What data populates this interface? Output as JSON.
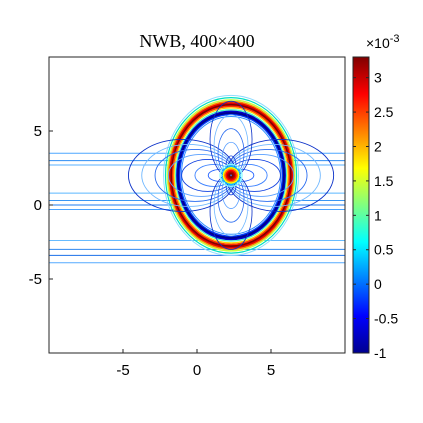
{
  "chart_data": {
    "type": "contour",
    "title": "NWB, 400×400",
    "xlabel": "",
    "ylabel": "",
    "xlim": [
      -10,
      10
    ],
    "ylim": [
      -10,
      10
    ],
    "x_ticks": [
      {
        "value": -5,
        "label": "-5"
      },
      {
        "value": 0,
        "label": "0"
      },
      {
        "value": 5,
        "label": "5"
      }
    ],
    "y_ticks": [
      {
        "value": 5,
        "label": "5"
      },
      {
        "value": 0,
        "label": "0"
      },
      {
        "value": -5,
        "label": "-5"
      }
    ],
    "grid": false,
    "colormap": "jet",
    "colorbar": {
      "exponent_label": "×10",
      "exponent_power": "-3",
      "range": [
        -1,
        3.3
      ],
      "ticks": [
        {
          "value": 3,
          "label": "3"
        },
        {
          "value": 2.5,
          "label": "2.5"
        },
        {
          "value": 2,
          "label": "2"
        },
        {
          "value": 1.5,
          "label": "1.5"
        },
        {
          "value": 1,
          "label": "1"
        },
        {
          "value": 0.5,
          "label": "0.5"
        },
        {
          "value": 0,
          "label": "0"
        },
        {
          "value": -0.5,
          "label": "-0.5"
        },
        {
          "value": -1,
          "label": "-1"
        }
      ],
      "colors": [
        "#00008f",
        "#0000ff",
        "#0080ff",
        "#00ffff",
        "#80ff80",
        "#ffff00",
        "#ff8000",
        "#ff0000",
        "#800000"
      ]
    },
    "features": {
      "ellipse_center": [
        2.3,
        2.0
      ],
      "ellipse_semi_axes": [
        4.3,
        5.1
      ],
      "source_point": [
        2.3,
        2.0
      ],
      "horizontal_levels": [
        {
          "y": 3.5,
          "color": "#4fa7ff"
        },
        {
          "y": 3.0,
          "color": "#2c8cf2"
        },
        {
          "y": 2.7,
          "color": "#5ab0ff"
        },
        {
          "y": 0.8,
          "color": "#5ab8ff"
        },
        {
          "y": 0.3,
          "color": "#3a97f5"
        },
        {
          "y": 0.0,
          "color": "#1f7ef0"
        },
        {
          "y": -0.3,
          "color": "#4ba3ff"
        },
        {
          "y": -2.4,
          "color": "#66bbff"
        },
        {
          "y": -3.0,
          "color": "#2f88f0"
        },
        {
          "y": -3.4,
          "color": "#1a6fe8"
        },
        {
          "y": -3.9,
          "color": "#55aaff"
        }
      ]
    }
  }
}
